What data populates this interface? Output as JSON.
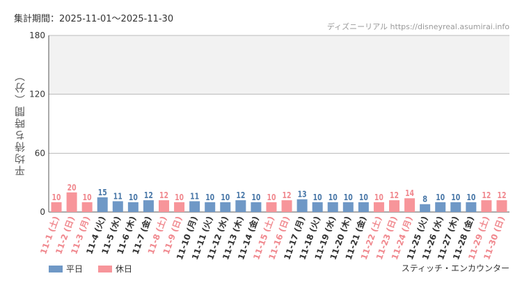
{
  "header": {
    "period": "集計期間：2025-11-01～2025-11-30",
    "credit": "ディズニーリアル https://disneyreal.asumirai.info"
  },
  "legend": {
    "weekday": "平日",
    "holiday": "休日"
  },
  "attraction": "スティッチ・エンカウンター",
  "colors": {
    "weekday": "#6f98c6",
    "holiday": "#f7959a",
    "holiday_text": "#f0888e",
    "weekday_text": "#4a78a8",
    "band": "#f2f2f2"
  },
  "chart_data": {
    "type": "bar",
    "ylabel": "平均待ち時間（分）",
    "ylim": [
      0,
      180
    ],
    "yticks": [
      0,
      60,
      120,
      180
    ],
    "categories": [
      "11-1 (土)",
      "11-2 (日)",
      "11-3 (月)",
      "11-4 (火)",
      "11-5 (水)",
      "11-6 (木)",
      "11-7 (金)",
      "11-8 (土)",
      "11-9 (日)",
      "11-10 (月)",
      "11-11 (火)",
      "11-12 (水)",
      "11-13 (木)",
      "11-14 (金)",
      "11-15 (土)",
      "11-16 (日)",
      "11-17 (月)",
      "11-18 (火)",
      "11-19 (水)",
      "11-20 (木)",
      "11-21 (金)",
      "11-22 (土)",
      "11-23 (日)",
      "11-24 (月)",
      "11-25 (火)",
      "11-26 (水)",
      "11-27 (木)",
      "11-28 (金)",
      "11-29 (土)",
      "11-30 (日)"
    ],
    "values": [
      10,
      20,
      10,
      15,
      11,
      10,
      12,
      12,
      10,
      11,
      10,
      10,
      12,
      10,
      10,
      12,
      13,
      10,
      10,
      10,
      10,
      10,
      12,
      14,
      8,
      10,
      10,
      10,
      12,
      12
    ],
    "holiday": [
      true,
      true,
      true,
      false,
      false,
      false,
      false,
      true,
      true,
      false,
      false,
      false,
      false,
      false,
      true,
      true,
      false,
      false,
      false,
      false,
      false,
      true,
      true,
      true,
      false,
      false,
      false,
      false,
      true,
      true
    ],
    "band": [
      120,
      180
    ]
  }
}
